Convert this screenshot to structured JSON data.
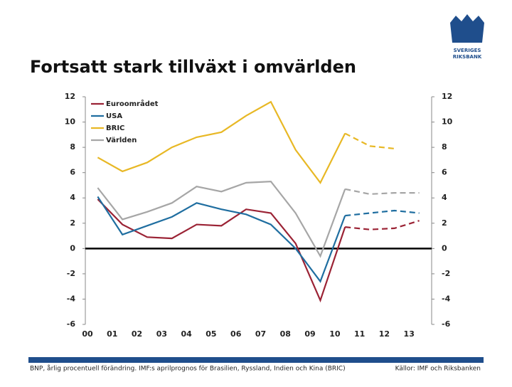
{
  "title": "Fortsatt stark tillväxt i omvärlden",
  "logo": [
    "SVERIGES",
    "RIKSBANK"
  ],
  "footnote": "BNP, årlig procentuell förändring. IMF:s aprilprognos för Brasilien, Ryssland, Indien och Kina (BRIC)",
  "source": "Källor: IMF och Riksbanken",
  "chart_data": {
    "type": "line",
    "categories": [
      "00",
      "01",
      "02",
      "03",
      "04",
      "05",
      "06",
      "07",
      "08",
      "09",
      "10",
      "11",
      "12",
      "13"
    ],
    "dashed_from": "10",
    "series": [
      {
        "name": "Euroområdet",
        "color": "#9b2335",
        "values": [
          3.9,
          1.9,
          0.9,
          0.8,
          1.9,
          1.8,
          3.1,
          2.8,
          0.4,
          -4.1,
          1.7,
          1.5,
          1.6,
          2.2
        ]
      },
      {
        "name": "USA",
        "color": "#1f6ea0",
        "values": [
          4.1,
          1.1,
          1.8,
          2.5,
          3.6,
          3.1,
          2.7,
          1.9,
          0.0,
          -2.6,
          2.6,
          2.8,
          3.0,
          2.8
        ]
      },
      {
        "name": "BRIC",
        "color": "#e8b825",
        "values": [
          7.2,
          6.1,
          6.8,
          8.0,
          8.8,
          9.2,
          10.5,
          11.6,
          7.8,
          5.2,
          9.1,
          8.1,
          7.9,
          null
        ]
      },
      {
        "name": "Världen",
        "color": "#a6a6a6",
        "values": [
          4.8,
          2.3,
          2.9,
          3.6,
          4.9,
          4.5,
          5.2,
          5.3,
          2.8,
          -0.6,
          4.7,
          4.3,
          4.4,
          4.4
        ]
      }
    ],
    "ylim": [
      -6,
      12
    ],
    "yticks": [
      -6,
      -4,
      -2,
      0,
      2,
      4,
      6,
      8,
      10,
      12
    ],
    "y2lim": [
      -6,
      12
    ],
    "y2ticks": [
      -6,
      -4,
      -2,
      0,
      2,
      4,
      6,
      8,
      10,
      12
    ],
    "legend": "upper left"
  }
}
